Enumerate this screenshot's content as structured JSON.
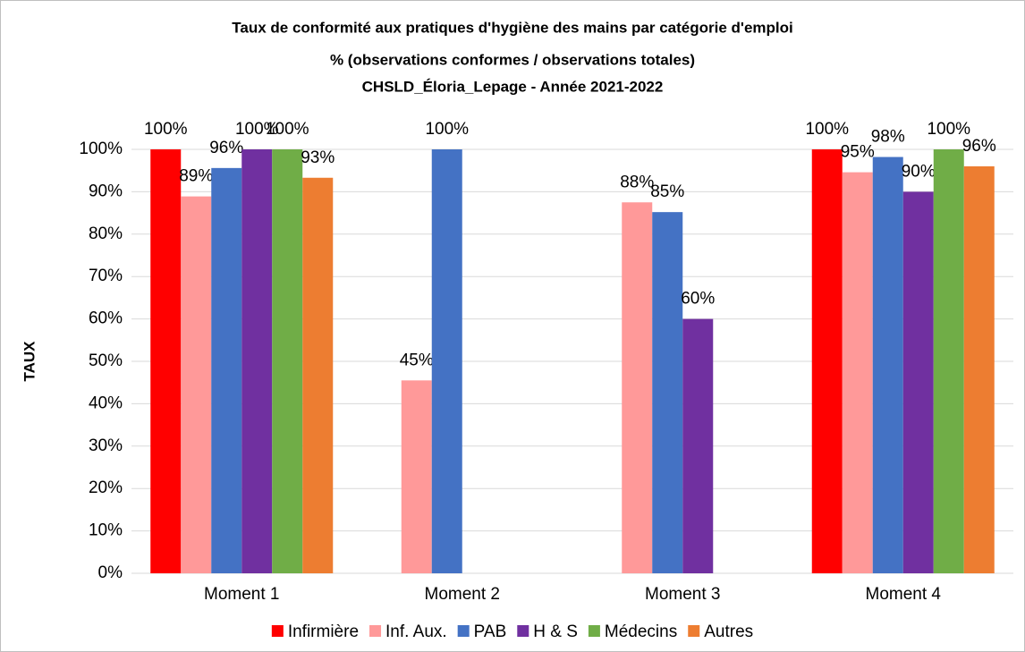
{
  "chart_data": {
    "type": "bar",
    "title": "Taux de conformité aux pratiques d'hygiène des mains par catégorie d'emploi",
    "subtitle": "% (observations conformes / observations totales)",
    "subtitle2": "CHSLD_Éloria_Lepage - Année 2021-2022",
    "y_label": "TAUX",
    "categories": [
      "Moment 1",
      "Moment 2",
      "Moment 3",
      "Moment 4"
    ],
    "series": [
      {
        "name": "Infirmière",
        "color": "#ff0000",
        "values": [
          100,
          null,
          null,
          100
        ],
        "value_labels": [
          "100%",
          null,
          null,
          "100%"
        ]
      },
      {
        "name": "Inf. Aux.",
        "color": "#ff9999",
        "values": [
          88.9,
          45.5,
          87.5,
          94.6
        ],
        "value_labels": [
          "89%",
          "45%",
          "88%",
          "95%"
        ]
      },
      {
        "name": "PAB",
        "color": "#4472c4",
        "values": [
          95.6,
          100,
          85.2,
          98.2
        ],
        "value_labels": [
          "96%",
          "100%",
          "85%",
          "98%"
        ]
      },
      {
        "name": "H & S",
        "color": "#7030a0",
        "values": [
          100,
          null,
          60,
          90
        ],
        "value_labels": [
          "100%",
          null,
          "60%",
          "90%"
        ]
      },
      {
        "name": "Médecins",
        "color": "#70ad47",
        "values": [
          100,
          null,
          null,
          100
        ],
        "value_labels": [
          "100%",
          null,
          null,
          "100%"
        ]
      },
      {
        "name": "Autres",
        "color": "#ed7d31",
        "values": [
          93.3,
          null,
          null,
          96
        ],
        "value_labels": [
          "93%",
          null,
          null,
          "96%"
        ]
      }
    ],
    "ylim": [
      0,
      100
    ],
    "yticks": [
      {
        "value": 0,
        "label": "0%"
      },
      {
        "value": 10,
        "label": "10%"
      },
      {
        "value": 20,
        "label": "20%"
      },
      {
        "value": 30,
        "label": "30%"
      },
      {
        "value": 40,
        "label": "40%"
      },
      {
        "value": 50,
        "label": "50%"
      },
      {
        "value": 60,
        "label": "60%"
      },
      {
        "value": 70,
        "label": "70%"
      },
      {
        "value": 80,
        "label": "80%"
      },
      {
        "value": 90,
        "label": "90%"
      },
      {
        "value": 100,
        "label": "100%"
      }
    ],
    "grid": true,
    "legend": "bottom"
  }
}
